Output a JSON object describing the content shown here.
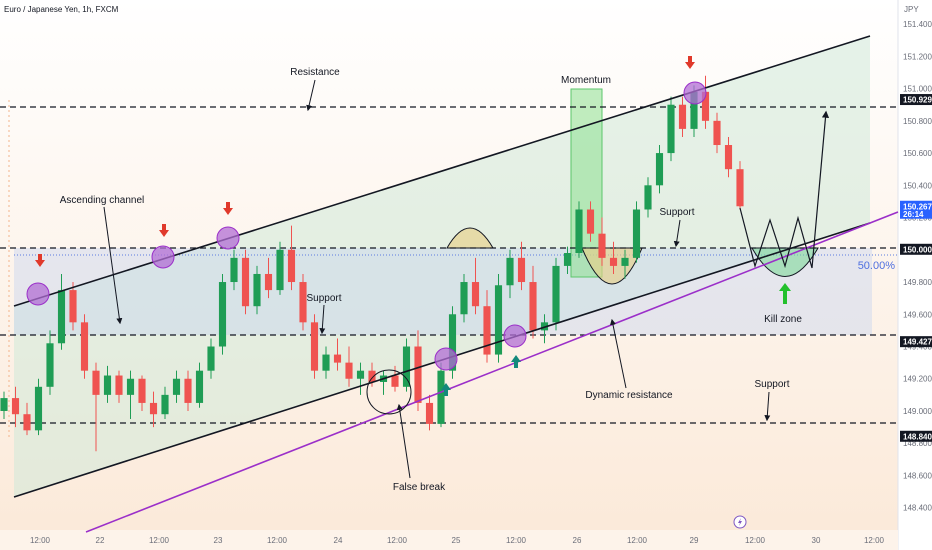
{
  "header": {
    "symbol_title": "Euro / Japanese Yen, 1h, FXCM",
    "currency": "JPY"
  },
  "chart_data": {
    "type": "candlestick",
    "symbol": "Euro / Japanese Yen",
    "interval": "1h",
    "source": "FXCM",
    "y_unit": "JPY",
    "y_axis_ticks": [
      "151.400",
      "151.200",
      "151.000",
      "150.800",
      "150.600",
      "150.400",
      "150.200",
      "150.000",
      "149.800",
      "149.600",
      "149.400",
      "149.200",
      "149.000",
      "148.800",
      "148.600",
      "148.400",
      "148.200"
    ],
    "x_axis_ticks": [
      "12:00",
      "22",
      "12:00",
      "23",
      "12:00",
      "24",
      "12:00",
      "25",
      "12:00",
      "26",
      "12:00",
      "29",
      "12:00",
      "30",
      "12:00"
    ],
    "ylim": [
      148.15,
      151.5
    ],
    "price_labels": [
      {
        "value": "150.929",
        "style": "dark"
      },
      {
        "value": "150.267",
        "style": "blue",
        "sub": "26:14"
      },
      {
        "value": "150.000",
        "style": "dark"
      },
      {
        "value": "149.427",
        "style": "dark"
      },
      {
        "value": "148.840",
        "style": "dark"
      }
    ],
    "horizontal_levels": [
      150.93,
      150.0,
      149.43,
      148.84
    ],
    "fib_label": "50.00%",
    "annotations": {
      "resistance": "Resistance",
      "momentum": "Momentum",
      "ascending_channel": "Ascending channel",
      "support_left": "Support",
      "support_top_right": "Support",
      "support_bottom_right": "Support",
      "kill_zone": "Kill zone",
      "dynamic_resistance": "Dynamic resistance",
      "false_break": "False break"
    },
    "candles": [
      {
        "o": 149.0,
        "h": 149.12,
        "l": 148.95,
        "c": 149.08
      },
      {
        "o": 149.08,
        "h": 149.15,
        "l": 148.9,
        "c": 148.98
      },
      {
        "o": 148.98,
        "h": 149.05,
        "l": 148.85,
        "c": 148.88
      },
      {
        "o": 148.88,
        "h": 149.2,
        "l": 148.85,
        "c": 149.15
      },
      {
        "o": 149.15,
        "h": 149.5,
        "l": 149.1,
        "c": 149.42
      },
      {
        "o": 149.42,
        "h": 149.85,
        "l": 149.38,
        "c": 149.75
      },
      {
        "o": 149.75,
        "h": 149.8,
        "l": 149.5,
        "c": 149.55
      },
      {
        "o": 149.55,
        "h": 149.6,
        "l": 149.2,
        "c": 149.25
      },
      {
        "o": 149.25,
        "h": 149.3,
        "l": 148.75,
        "c": 149.1
      },
      {
        "o": 149.1,
        "h": 149.28,
        "l": 149.05,
        "c": 149.22
      },
      {
        "o": 149.22,
        "h": 149.25,
        "l": 149.05,
        "c": 149.1
      },
      {
        "o": 149.1,
        "h": 149.25,
        "l": 148.95,
        "c": 149.2
      },
      {
        "o": 149.2,
        "h": 149.22,
        "l": 149.0,
        "c": 149.05
      },
      {
        "o": 149.05,
        "h": 149.12,
        "l": 148.9,
        "c": 148.98
      },
      {
        "o": 148.98,
        "h": 149.15,
        "l": 148.95,
        "c": 149.1
      },
      {
        "o": 149.1,
        "h": 149.25,
        "l": 149.05,
        "c": 149.2
      },
      {
        "o": 149.2,
        "h": 149.25,
        "l": 149.0,
        "c": 149.05
      },
      {
        "o": 149.05,
        "h": 149.3,
        "l": 149.02,
        "c": 149.25
      },
      {
        "o": 149.25,
        "h": 149.45,
        "l": 149.2,
        "c": 149.4
      },
      {
        "o": 149.4,
        "h": 149.85,
        "l": 149.35,
        "c": 149.8
      },
      {
        "o": 149.8,
        "h": 150.0,
        "l": 149.75,
        "c": 149.95
      },
      {
        "o": 149.95,
        "h": 150.0,
        "l": 149.6,
        "c": 149.65
      },
      {
        "o": 149.65,
        "h": 149.9,
        "l": 149.6,
        "c": 149.85
      },
      {
        "o": 149.85,
        "h": 149.95,
        "l": 149.7,
        "c": 149.75
      },
      {
        "o": 149.75,
        "h": 150.05,
        "l": 149.72,
        "c": 150.0
      },
      {
        "o": 150.0,
        "h": 150.15,
        "l": 149.75,
        "c": 149.8
      },
      {
        "o": 149.8,
        "h": 149.85,
        "l": 149.5,
        "c": 149.55
      },
      {
        "o": 149.55,
        "h": 149.6,
        "l": 149.2,
        "c": 149.25
      },
      {
        "o": 149.25,
        "h": 149.4,
        "l": 149.2,
        "c": 149.35
      },
      {
        "o": 149.35,
        "h": 149.45,
        "l": 149.25,
        "c": 149.3
      },
      {
        "o": 149.3,
        "h": 149.4,
        "l": 149.15,
        "c": 149.2
      },
      {
        "o": 149.2,
        "h": 149.3,
        "l": 149.1,
        "c": 149.25
      },
      {
        "o": 149.25,
        "h": 149.3,
        "l": 149.15,
        "c": 149.18
      },
      {
        "o": 149.18,
        "h": 149.25,
        "l": 149.1,
        "c": 149.22
      },
      {
        "o": 149.22,
        "h": 149.28,
        "l": 149.12,
        "c": 149.15
      },
      {
        "o": 149.15,
        "h": 149.45,
        "l": 149.12,
        "c": 149.4
      },
      {
        "o": 149.4,
        "h": 149.5,
        "l": 149.0,
        "c": 149.05
      },
      {
        "o": 149.05,
        "h": 149.1,
        "l": 148.88,
        "c": 148.92
      },
      {
        "o": 148.92,
        "h": 149.3,
        "l": 148.9,
        "c": 149.25
      },
      {
        "o": 149.25,
        "h": 149.65,
        "l": 149.2,
        "c": 149.6
      },
      {
        "o": 149.6,
        "h": 149.85,
        "l": 149.55,
        "c": 149.8
      },
      {
        "o": 149.8,
        "h": 149.95,
        "l": 149.6,
        "c": 149.65
      },
      {
        "o": 149.65,
        "h": 149.75,
        "l": 149.3,
        "c": 149.35
      },
      {
        "o": 149.35,
        "h": 149.85,
        "l": 149.3,
        "c": 149.78
      },
      {
        "o": 149.78,
        "h": 150.0,
        "l": 149.7,
        "c": 149.95
      },
      {
        "o": 149.95,
        "h": 150.05,
        "l": 149.75,
        "c": 149.8
      },
      {
        "o": 149.8,
        "h": 149.9,
        "l": 149.45,
        "c": 149.5
      },
      {
        "o": 149.5,
        "h": 149.6,
        "l": 149.42,
        "c": 149.55
      },
      {
        "o": 149.55,
        "h": 149.95,
        "l": 149.5,
        "c": 149.9
      },
      {
        "o": 149.9,
        "h": 150.02,
        "l": 149.85,
        "c": 149.98
      },
      {
        "o": 149.98,
        "h": 150.3,
        "l": 149.95,
        "c": 150.25
      },
      {
        "o": 150.25,
        "h": 150.3,
        "l": 150.05,
        "c": 150.1
      },
      {
        "o": 150.1,
        "h": 150.2,
        "l": 149.9,
        "c": 149.95
      },
      {
        "o": 149.95,
        "h": 150.05,
        "l": 149.85,
        "c": 149.9
      },
      {
        "o": 149.9,
        "h": 150.0,
        "l": 149.82,
        "c": 149.95
      },
      {
        "o": 149.95,
        "h": 150.3,
        "l": 149.92,
        "c": 150.25
      },
      {
        "o": 150.25,
        "h": 150.45,
        "l": 150.2,
        "c": 150.4
      },
      {
        "o": 150.4,
        "h": 150.65,
        "l": 150.35,
        "c": 150.6
      },
      {
        "o": 150.6,
        "h": 150.95,
        "l": 150.55,
        "c": 150.9
      },
      {
        "o": 150.9,
        "h": 150.95,
        "l": 150.7,
        "c": 150.75
      },
      {
        "o": 150.75,
        "h": 151.02,
        "l": 150.7,
        "c": 150.98
      },
      {
        "o": 150.98,
        "h": 151.08,
        "l": 150.75,
        "c": 150.8
      },
      {
        "o": 150.8,
        "h": 150.85,
        "l": 150.6,
        "c": 150.65
      },
      {
        "o": 150.65,
        "h": 150.7,
        "l": 150.45,
        "c": 150.5
      },
      {
        "o": 150.5,
        "h": 150.55,
        "l": 150.25,
        "c": 150.27
      }
    ]
  }
}
